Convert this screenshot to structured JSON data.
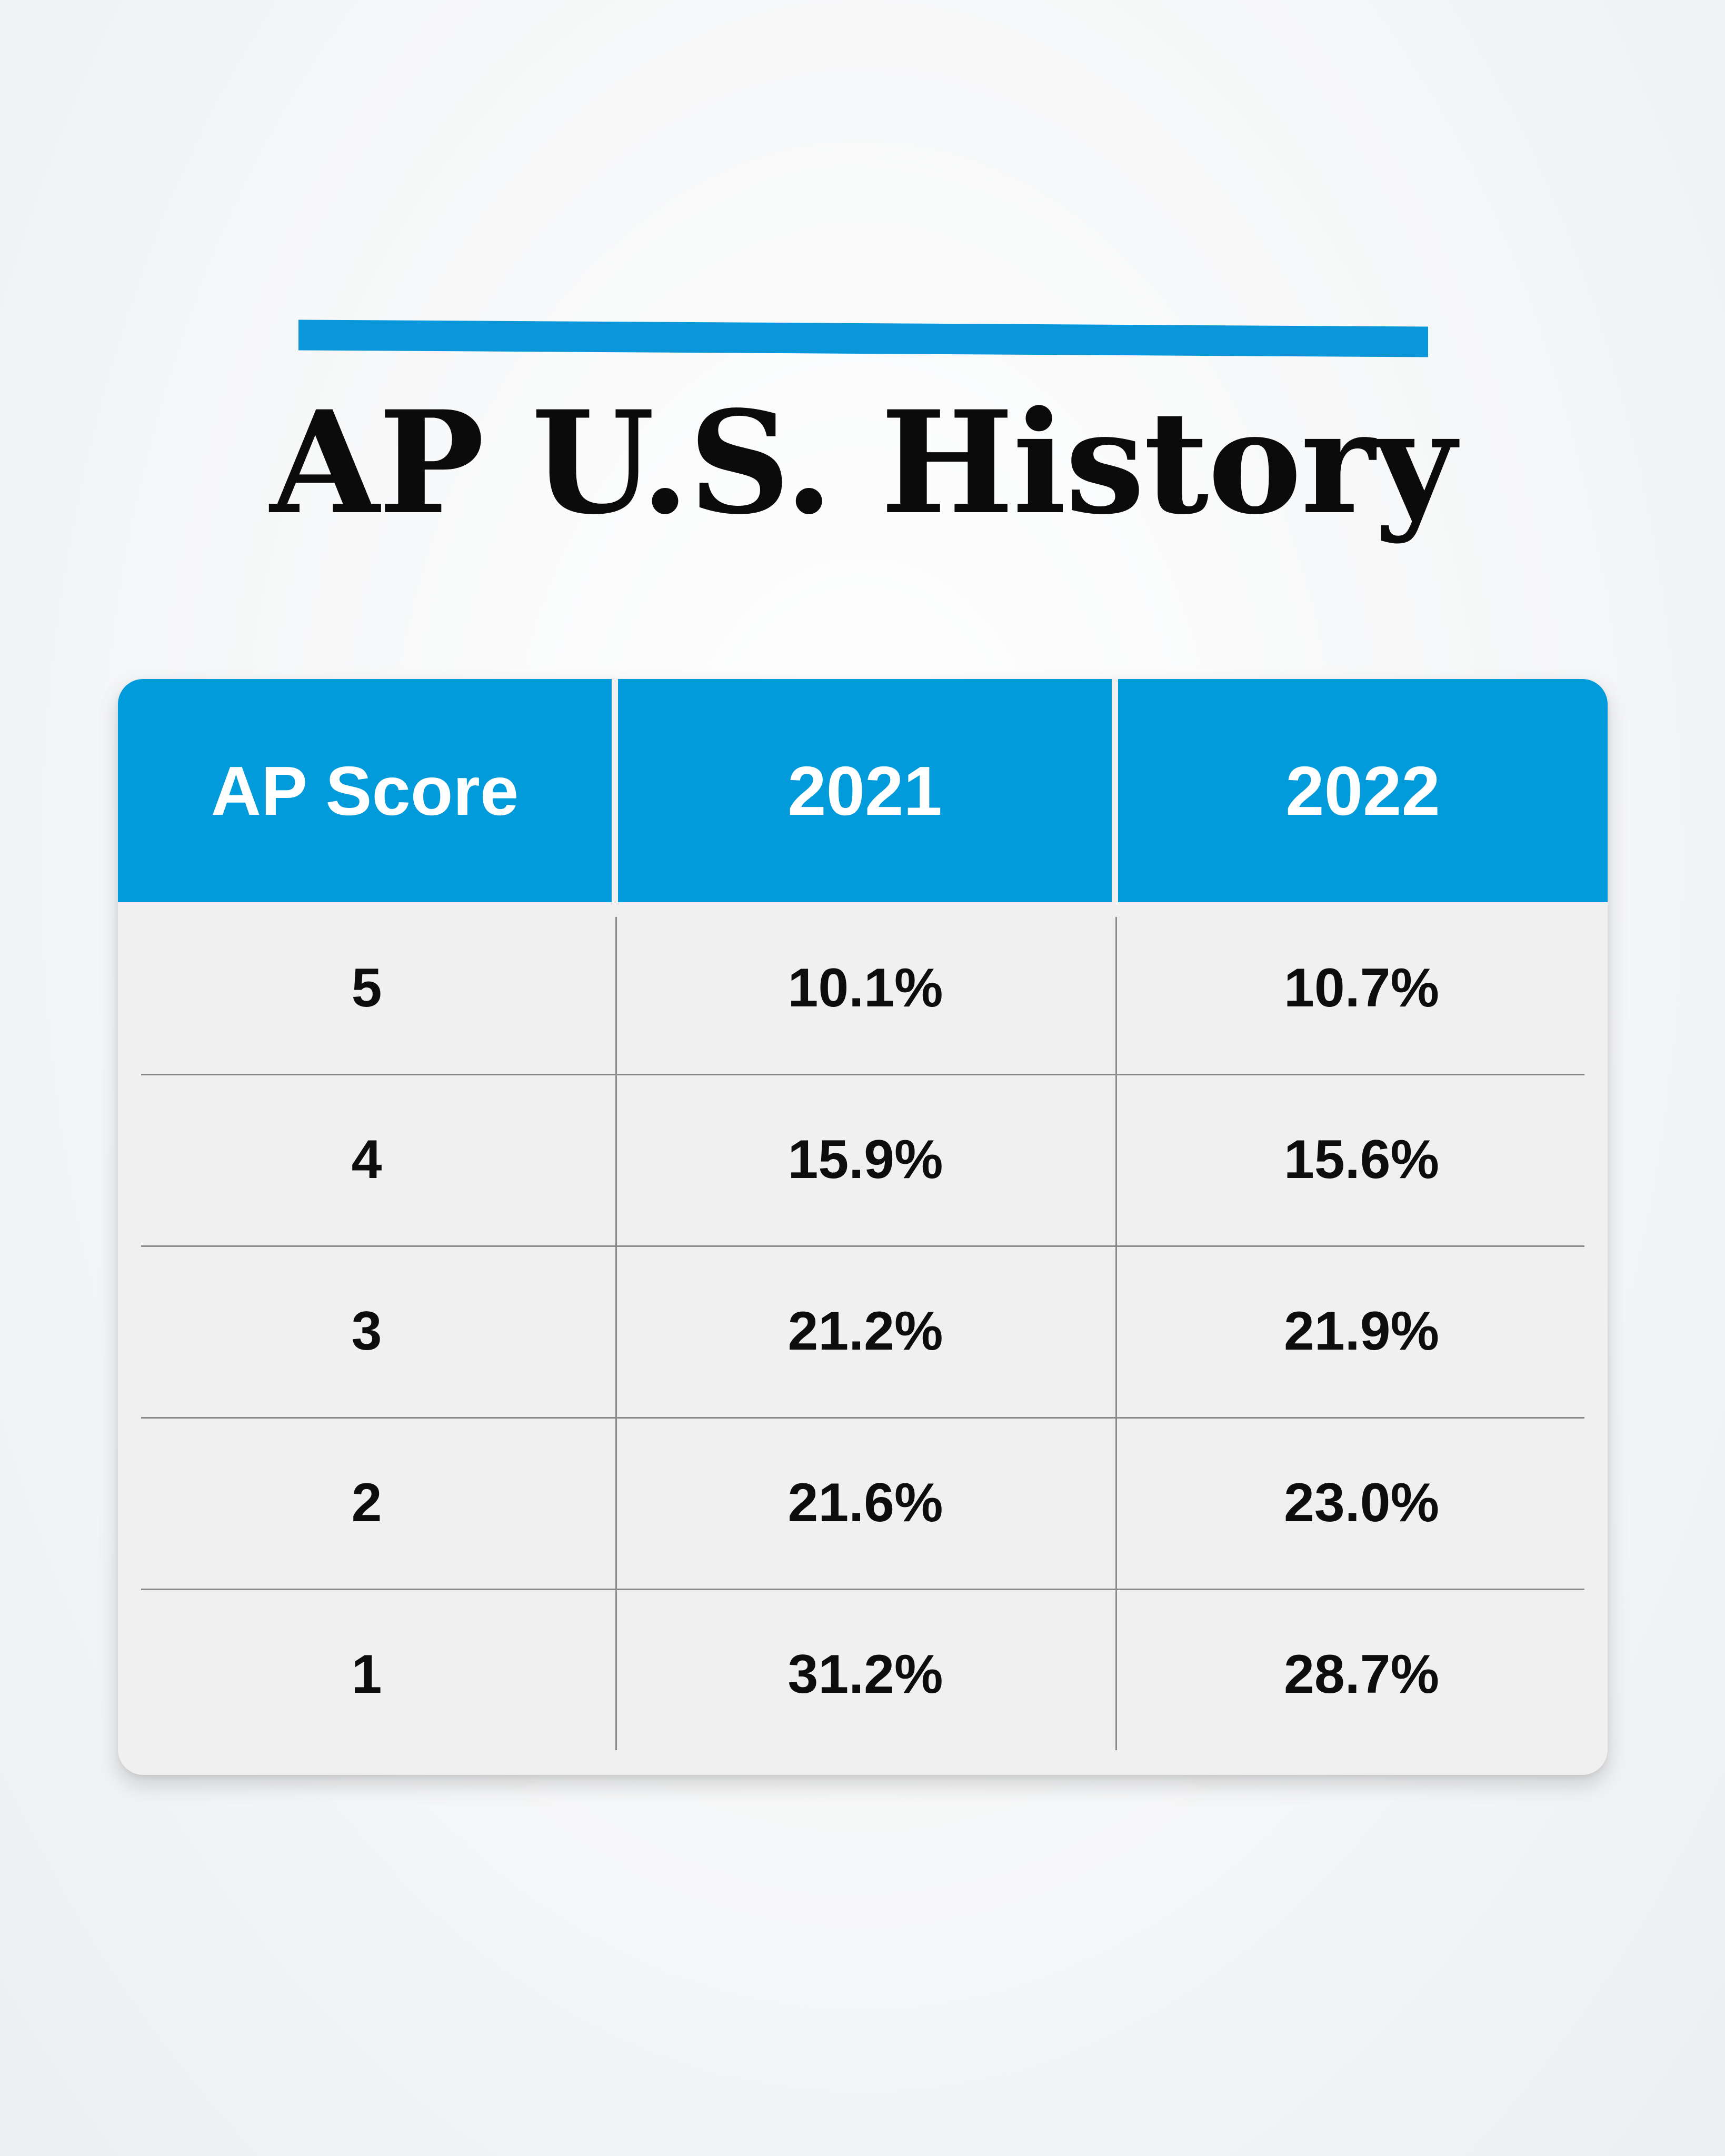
{
  "title": "AP U.S. History",
  "colors": {
    "accent": "#0a97d9",
    "header_bg": "#019bdb",
    "body_bg": "#f0f0f0",
    "text": "#0d0d0d"
  },
  "chart_data": {
    "type": "table",
    "title": "AP U.S. History",
    "columns": [
      "AP Score",
      "2021",
      "2022"
    ],
    "rows": [
      [
        "5",
        "10.1%",
        "10.7%"
      ],
      [
        "4",
        "15.9%",
        "15.6%"
      ],
      [
        "3",
        "21.2%",
        "21.9%"
      ],
      [
        "2",
        "21.6%",
        "23.0%"
      ],
      [
        "1",
        "31.2%",
        "28.7%"
      ]
    ]
  }
}
